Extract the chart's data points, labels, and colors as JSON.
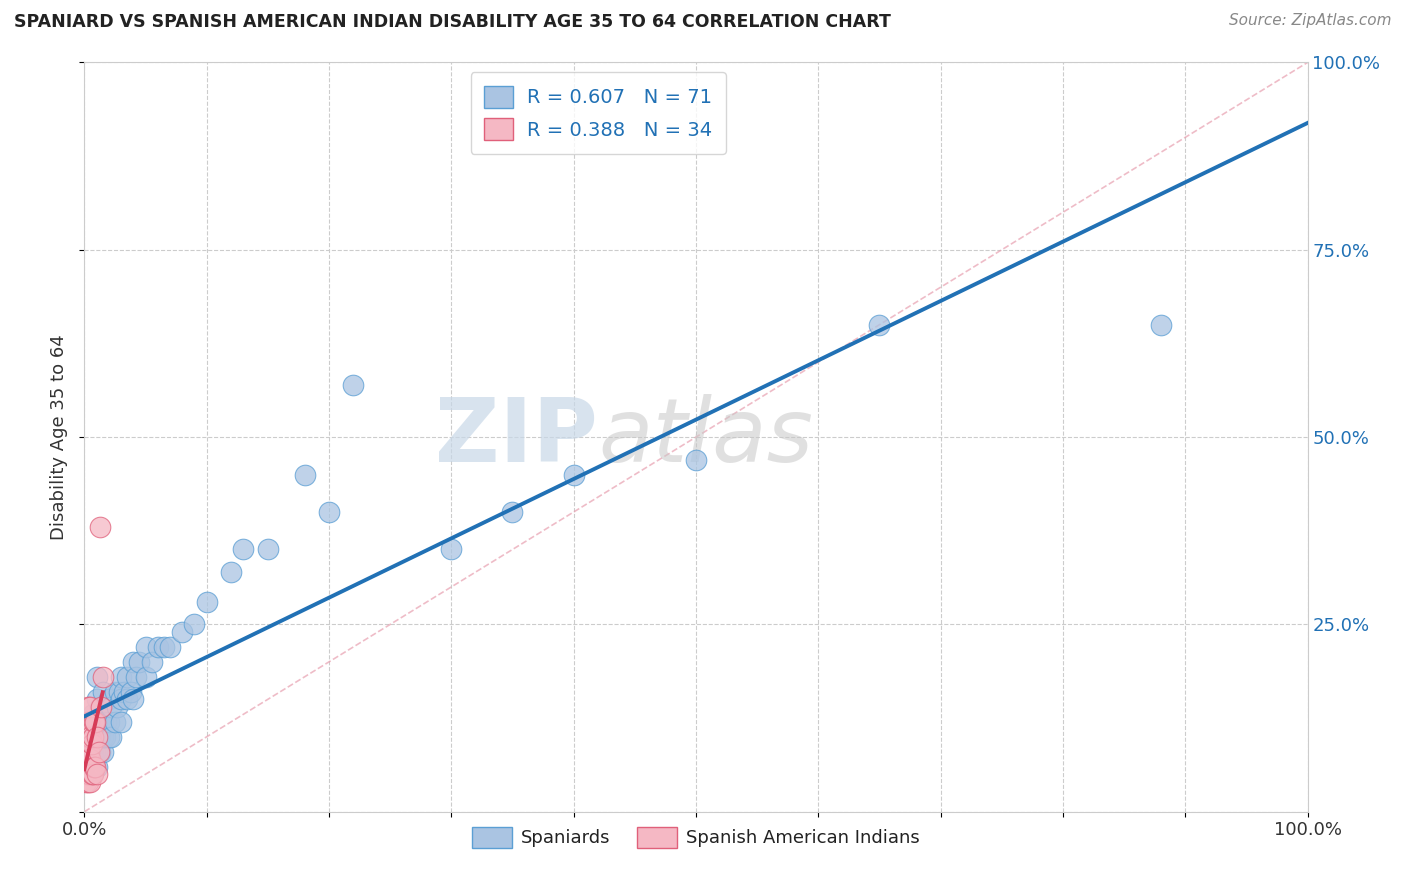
{
  "title": "SPANIARD VS SPANISH AMERICAN INDIAN DISABILITY AGE 35 TO 64 CORRELATION CHART",
  "source": "Source: ZipAtlas.com",
  "ylabel": "Disability Age 35 to 64",
  "xlim": [
    0.0,
    1.0
  ],
  "ylim": [
    0.0,
    1.0
  ],
  "background_color": "#ffffff",
  "grid_color": "#cccccc",
  "watermark_zip": "ZIP",
  "watermark_atlas": "atlas",
  "series1_name": "Spaniards",
  "series1_color": "#aac4e2",
  "series1_edge": "#5b9fd4",
  "series1_line": "#2171b5",
  "series1_R": 0.607,
  "series1_N": 71,
  "series1_x": [
    0.005,
    0.005,
    0.005,
    0.005,
    0.005,
    0.007,
    0.007,
    0.007,
    0.007,
    0.008,
    0.008,
    0.009,
    0.009,
    0.01,
    0.01,
    0.01,
    0.01,
    0.01,
    0.01,
    0.012,
    0.012,
    0.013,
    0.013,
    0.013,
    0.015,
    0.015,
    0.015,
    0.015,
    0.017,
    0.018,
    0.02,
    0.02,
    0.02,
    0.022,
    0.022,
    0.025,
    0.025,
    0.027,
    0.028,
    0.03,
    0.03,
    0.03,
    0.032,
    0.035,
    0.035,
    0.038,
    0.04,
    0.04,
    0.042,
    0.045,
    0.05,
    0.05,
    0.055,
    0.06,
    0.065,
    0.07,
    0.08,
    0.09,
    0.1,
    0.12,
    0.13,
    0.15,
    0.18,
    0.2,
    0.22,
    0.3,
    0.35,
    0.4,
    0.5,
    0.65,
    0.88
  ],
  "series1_y": [
    0.05,
    0.07,
    0.08,
    0.1,
    0.12,
    0.06,
    0.08,
    0.1,
    0.13,
    0.07,
    0.09,
    0.08,
    0.12,
    0.06,
    0.08,
    0.1,
    0.12,
    0.15,
    0.18,
    0.08,
    0.1,
    0.08,
    0.1,
    0.14,
    0.08,
    0.1,
    0.12,
    0.16,
    0.1,
    0.12,
    0.1,
    0.12,
    0.15,
    0.1,
    0.14,
    0.12,
    0.16,
    0.14,
    0.16,
    0.12,
    0.15,
    0.18,
    0.16,
    0.15,
    0.18,
    0.16,
    0.15,
    0.2,
    0.18,
    0.2,
    0.18,
    0.22,
    0.2,
    0.22,
    0.22,
    0.22,
    0.24,
    0.25,
    0.28,
    0.32,
    0.35,
    0.35,
    0.45,
    0.4,
    0.57,
    0.35,
    0.4,
    0.45,
    0.47,
    0.65,
    0.65
  ],
  "series2_name": "Spanish American Indians",
  "series2_color": "#f5b8c4",
  "series2_edge": "#e0607a",
  "series2_line": "#d63b57",
  "series2_R": 0.388,
  "series2_N": 34,
  "series2_x": [
    0.0,
    0.0,
    0.0,
    0.001,
    0.001,
    0.001,
    0.002,
    0.002,
    0.002,
    0.003,
    0.003,
    0.003,
    0.003,
    0.004,
    0.004,
    0.004,
    0.005,
    0.005,
    0.005,
    0.005,
    0.006,
    0.006,
    0.007,
    0.007,
    0.008,
    0.008,
    0.009,
    0.009,
    0.01,
    0.01,
    0.012,
    0.013,
    0.014,
    0.015
  ],
  "series2_y": [
    0.05,
    0.07,
    0.1,
    0.04,
    0.07,
    0.1,
    0.05,
    0.08,
    0.12,
    0.04,
    0.07,
    0.1,
    0.14,
    0.05,
    0.08,
    0.12,
    0.04,
    0.07,
    0.1,
    0.14,
    0.05,
    0.09,
    0.05,
    0.1,
    0.06,
    0.12,
    0.06,
    0.12,
    0.05,
    0.1,
    0.08,
    0.38,
    0.14,
    0.18
  ]
}
